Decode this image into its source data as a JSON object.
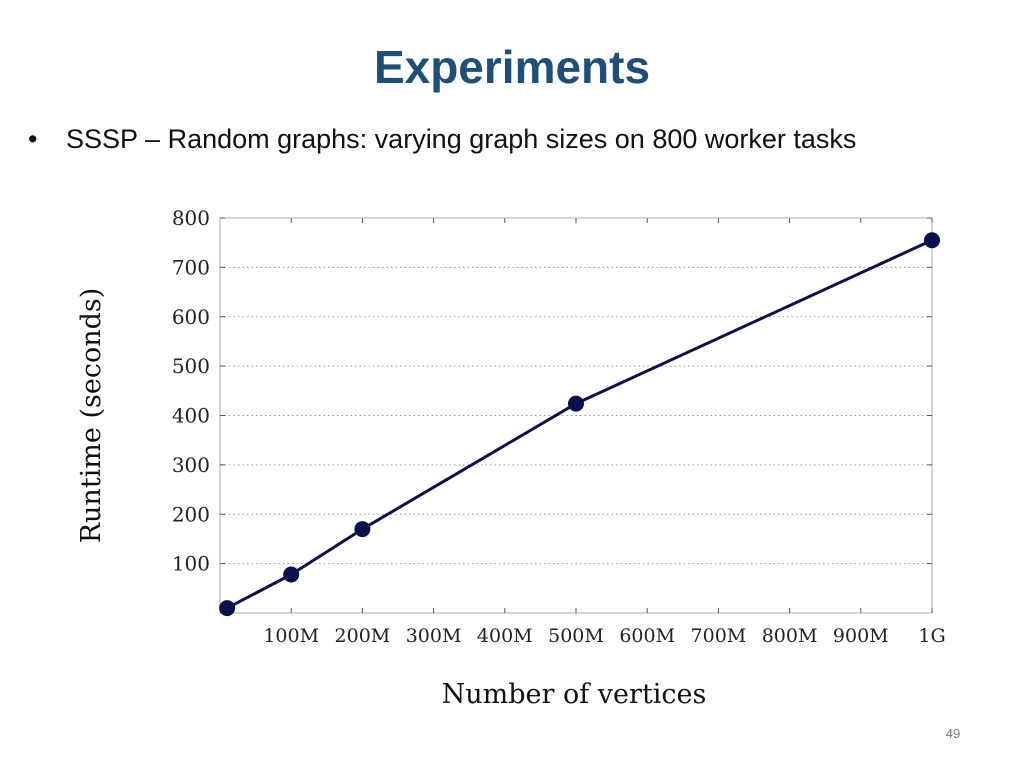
{
  "slide": {
    "title": "Experiments",
    "bullet_marker": "•",
    "bullet_text": "SSSP – Random graphs: varying graph sizes on 800 worker tasks",
    "page_number": "49"
  },
  "colors": {
    "title": "#1f4e79",
    "series_line": "#0b0f4a",
    "series_marker": "#0b0f4a",
    "grid": "#9a9a9a",
    "axis_frame": "#b0b0b0"
  },
  "chart_data": {
    "type": "line",
    "xlabel": "Number of vertices",
    "ylabel": "Runtime (seconds)",
    "xlim": [
      0,
      1000
    ],
    "ylim": [
      0,
      800
    ],
    "x_ticks": [
      {
        "value": 100,
        "label": "100M"
      },
      {
        "value": 200,
        "label": "200M"
      },
      {
        "value": 300,
        "label": "300M"
      },
      {
        "value": 400,
        "label": "400M"
      },
      {
        "value": 500,
        "label": "500M"
      },
      {
        "value": 600,
        "label": "600M"
      },
      {
        "value": 700,
        "label": "700M"
      },
      {
        "value": 800,
        "label": "800M"
      },
      {
        "value": 900,
        "label": "900M"
      },
      {
        "value": 1000,
        "label": "1G"
      }
    ],
    "y_ticks": [
      {
        "value": 100,
        "label": "100"
      },
      {
        "value": 200,
        "label": "200"
      },
      {
        "value": 300,
        "label": "300"
      },
      {
        "value": 400,
        "label": "400"
      },
      {
        "value": 500,
        "label": "500"
      },
      {
        "value": 600,
        "label": "600"
      },
      {
        "value": 700,
        "label": "700"
      },
      {
        "value": 800,
        "label": "800"
      }
    ],
    "grid": "horizontal dotted",
    "legend": "none",
    "series": [
      {
        "x": [
          10,
          100,
          200,
          500,
          1000
        ],
        "y": [
          10,
          78,
          170,
          424,
          755
        ]
      }
    ]
  }
}
